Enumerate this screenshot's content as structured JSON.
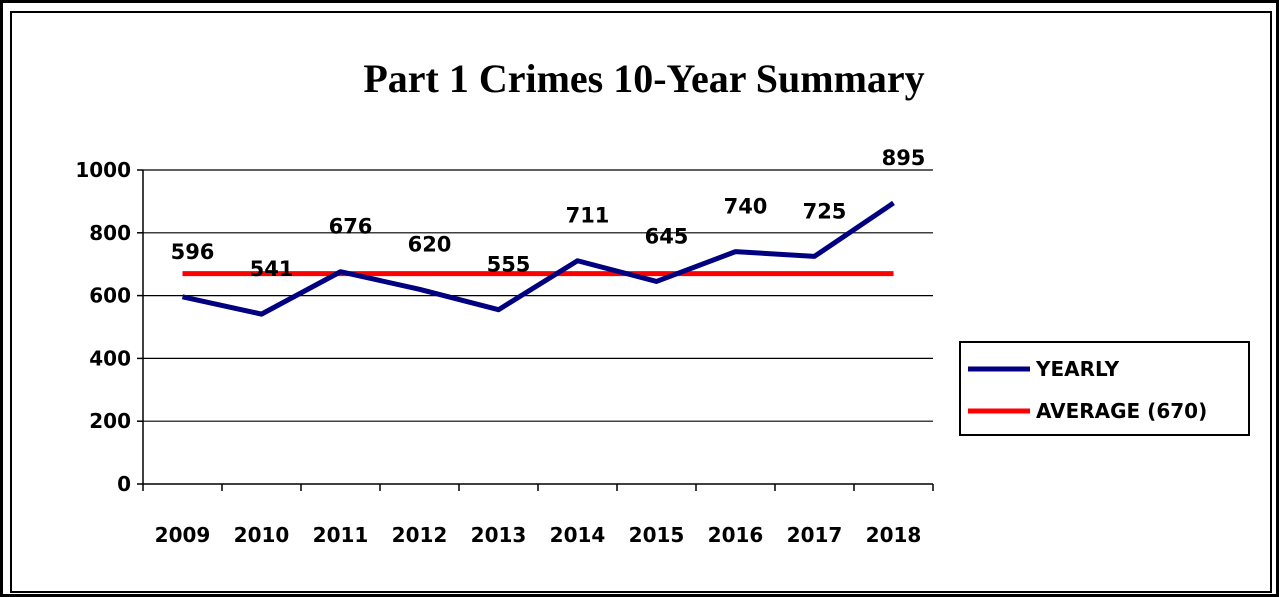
{
  "chart_data": {
    "type": "line",
    "title": "Part 1 Crimes 10-Year Summary",
    "xlabel": "",
    "ylabel": "",
    "categories": [
      "2009",
      "2010",
      "2011",
      "2012",
      "2013",
      "2014",
      "2015",
      "2016",
      "2017",
      "2018"
    ],
    "ylim": [
      0,
      1000
    ],
    "yticks": [
      0,
      200,
      400,
      600,
      800,
      1000
    ],
    "grid": true,
    "legend_position": "right",
    "series": [
      {
        "name": "YEARLY",
        "color": "#000080",
        "values": [
          596,
          541,
          676,
          620,
          555,
          711,
          645,
          740,
          725,
          895
        ],
        "data_labels": [
          "596",
          "541",
          "676",
          "620",
          "555",
          "711",
          "645",
          "740",
          "725",
          "895"
        ]
      },
      {
        "name": "AVERAGE (670)",
        "color": "#ff0000",
        "values": [
          670,
          670,
          670,
          670,
          670,
          670,
          670,
          670,
          670,
          670
        ]
      }
    ]
  }
}
